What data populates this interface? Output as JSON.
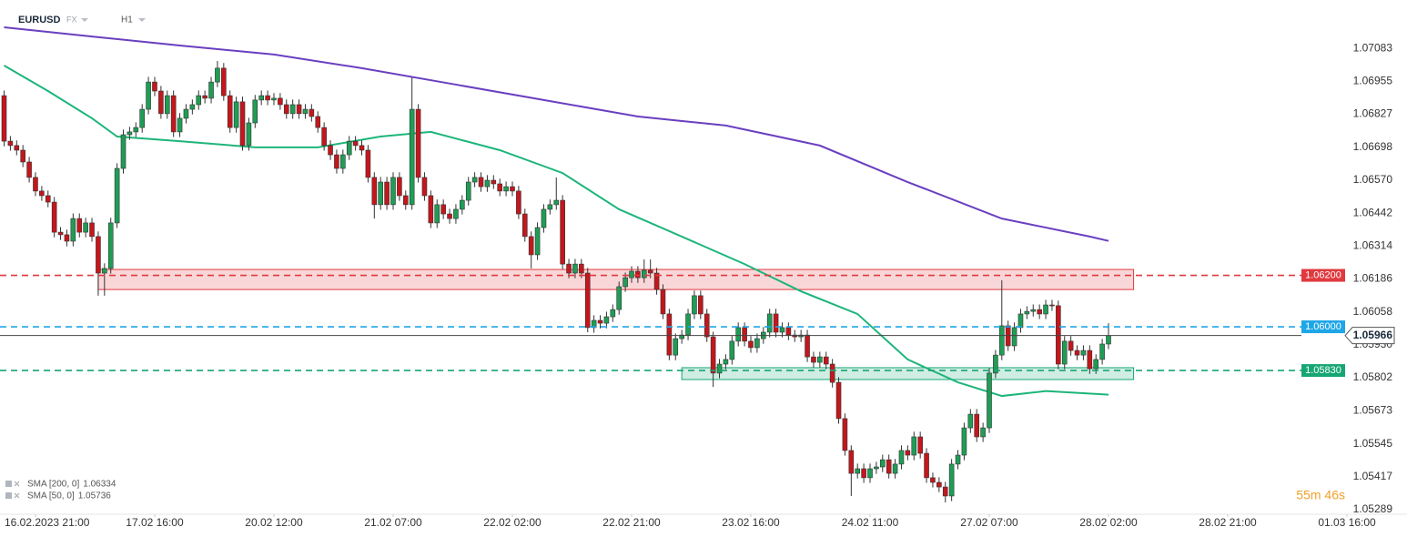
{
  "header": {
    "symbol": "EURUSD",
    "market": "FX",
    "timeframe": "H1"
  },
  "countdown": "55m 46s",
  "chart_data": {
    "type": "candlestick",
    "xlim": [
      -0.653,
      223.57
    ],
    "xticks": [
      {
        "value": 5,
        "label": "16.02.2023 21:00"
      },
      {
        "value": 24,
        "label": "17.02 16:00"
      },
      {
        "value": 43,
        "label": "20.02 12:00"
      },
      {
        "value": 62,
        "label": "21.02 07:00"
      },
      {
        "value": 81,
        "label": "22.02 02:00"
      },
      {
        "value": 100,
        "label": "22.02 21:00"
      },
      {
        "value": 119,
        "label": "23.02 16:00"
      },
      {
        "value": 138,
        "label": "24.02 11:00"
      },
      {
        "value": 157,
        "label": "27.02 07:00"
      },
      {
        "value": 176,
        "label": "28.02 02:00"
      },
      {
        "value": 195,
        "label": "28.02 21:00"
      },
      {
        "value": 214,
        "label": "01.03 16:00"
      }
    ],
    "ylim": [
      1.05271,
      1.07271
    ],
    "yticks": [
      1.07083,
      1.06955,
      1.06827,
      1.06698,
      {
        "value": 1.0657,
        "label": "1.06570"
      },
      1.06442,
      1.06314,
      1.06186,
      1.06058,
      {
        "value": 1.0593,
        "label": "1.05930"
      },
      1.05802,
      1.05673,
      1.05545,
      1.05417,
      1.05289
    ],
    "grid": false,
    "up_color": "#1f9d55",
    "down_color": "#c4161c",
    "open": [
      1.06899,
      1.06722,
      1.06705,
      1.06687,
      1.06641,
      1.06581,
      1.06528,
      1.0651,
      1.06485,
      1.06368,
      1.06358,
      1.06333,
      1.06421,
      1.06368,
      1.06404,
      1.06351,
      1.06209,
      1.06227,
      1.06404,
      1.06616,
      1.06747,
      1.06758,
      1.06775,
      1.06846,
      1.06952,
      1.06917,
      1.06829,
      1.06899,
      1.06758,
      1.06811,
      1.06846,
      1.06864,
      1.06899,
      1.06889,
      1.06952,
      1.07006,
      1.06899,
      1.06775,
      1.06875,
      1.06705,
      1.06793,
      1.06882,
      1.06899,
      1.06882,
      1.06889,
      1.06864,
      1.06829,
      1.06864,
      1.06829,
      1.06846,
      1.06818,
      1.06775,
      1.06705,
      1.06669,
      1.06616,
      1.06669,
      1.06722,
      1.06705,
      1.06687,
      1.06581,
      1.06475,
      1.06563,
      1.06475,
      1.06581,
      1.0651,
      1.06475,
      1.06846,
      1.06581,
      1.0651,
      1.06404,
      1.06475,
      1.06439,
      1.06421,
      1.06457,
      1.06492,
      1.06563,
      1.06581,
      1.06545,
      1.0657,
      1.06556,
      1.06528,
      1.06545,
      1.06528,
      1.06439,
      1.06351,
      1.0628,
      1.06386,
      1.06457,
      1.06475,
      1.06492,
      1.06244,
      1.06209,
      1.06244,
      1.06209,
      1.05997,
      1.06025,
      1.06014,
      1.06039,
      1.06067,
      1.06156,
      1.06191,
      1.06216,
      1.06191,
      1.0622,
      1.06209,
      1.06145,
      1.0605,
      1.0589,
      1.05954,
      1.05968,
      1.0605,
      1.06121,
      1.0605,
      1.05961,
      1.0582,
      1.05855,
      1.05873,
      1.05944,
      1.05997,
      1.05944,
      1.05919,
      1.05954,
      1.05979,
      1.0605,
      1.05979,
      1.05997,
      1.05968,
      1.05961,
      1.05968,
      1.05883,
      1.05862,
      1.05883,
      1.05855,
      1.05784,
      1.05643,
      1.05519,
      1.0543,
      1.05448,
      1.05413,
      1.05448,
      1.05455,
      1.05483,
      1.0543,
      1.05466,
      1.05519,
      1.05501,
      1.05572,
      1.05508,
      1.05413,
      1.05395,
      1.05377,
      1.05342,
      1.05466,
      1.05501,
      1.05607,
      1.0566,
      1.05572,
      1.05607,
      1.0582,
      1.0589,
      1.06004,
      1.05926,
      1.05997,
      1.0605,
      1.0606,
      1.06067,
      1.0605,
      1.06085,
      1.06082,
      1.05855,
      1.05944,
      1.05908,
      1.0589,
      1.05908,
      1.05837,
      1.05873,
      1.05933
    ],
    "high": [
      1.06919,
      1.06742,
      1.06725,
      1.06707,
      1.06661,
      1.06601,
      1.06548,
      1.0653,
      1.06505,
      1.06388,
      1.06378,
      1.06441,
      1.06441,
      1.06424,
      1.06424,
      1.06371,
      1.06247,
      1.06424,
      1.06636,
      1.06767,
      1.06778,
      1.06795,
      1.06866,
      1.06972,
      1.06972,
      1.06937,
      1.06919,
      1.06919,
      1.06831,
      1.06866,
      1.06884,
      1.06919,
      1.06919,
      1.06972,
      1.07034,
      1.07026,
      1.06919,
      1.06895,
      1.06895,
      1.06813,
      1.06902,
      1.06919,
      1.06919,
      1.06909,
      1.06909,
      1.06884,
      1.06884,
      1.06884,
      1.06866,
      1.06866,
      1.06838,
      1.06795,
      1.06725,
      1.06689,
      1.06689,
      1.06742,
      1.06742,
      1.06725,
      1.06707,
      1.06601,
      1.06583,
      1.06583,
      1.06601,
      1.06601,
      1.0653,
      1.0697,
      1.06866,
      1.06601,
      1.0653,
      1.06495,
      1.06495,
      1.06459,
      1.06477,
      1.06512,
      1.06583,
      1.06601,
      1.06601,
      1.0659,
      1.0659,
      1.06576,
      1.06565,
      1.06565,
      1.06548,
      1.06459,
      1.06371,
      1.06406,
      1.06477,
      1.06495,
      1.06581,
      1.06512,
      1.06264,
      1.06264,
      1.06264,
      1.06229,
      1.06045,
      1.06045,
      1.06059,
      1.06087,
      1.06176,
      1.06211,
      1.06236,
      1.06236,
      1.06262,
      1.06262,
      1.06229,
      1.06165,
      1.0607,
      1.05974,
      1.05988,
      1.0607,
      1.06141,
      1.06141,
      1.0607,
      1.05981,
      1.05875,
      1.05893,
      1.05964,
      1.06017,
      1.06017,
      1.05964,
      1.05974,
      1.05999,
      1.0607,
      1.0607,
      1.06017,
      1.06017,
      1.05988,
      1.05988,
      1.05988,
      1.05903,
      1.05903,
      1.05903,
      1.05875,
      1.05804,
      1.05663,
      1.05539,
      1.05468,
      1.05468,
      1.05468,
      1.05475,
      1.05503,
      1.05503,
      1.05486,
      1.05539,
      1.05539,
      1.05592,
      1.05592,
      1.05528,
      1.05433,
      1.05415,
      1.05397,
      1.05486,
      1.05521,
      1.05627,
      1.0568,
      1.0568,
      1.05627,
      1.0584,
      1.0591,
      1.06181,
      1.06024,
      1.06017,
      1.0607,
      1.0608,
      1.06087,
      1.06087,
      1.06105,
      1.06105,
      1.06102,
      1.05964,
      1.05964,
      1.05928,
      1.05928,
      1.05928,
      1.05893,
      1.05953,
      1.06014
    ],
    "low": [
      1.06702,
      1.06685,
      1.06667,
      1.06621,
      1.06561,
      1.06508,
      1.0649,
      1.06465,
      1.06348,
      1.06338,
      1.06313,
      1.06313,
      1.06348,
      1.06348,
      1.06331,
      1.06121,
      1.06121,
      1.06207,
      1.06384,
      1.06596,
      1.06727,
      1.06738,
      1.06755,
      1.06826,
      1.06897,
      1.06809,
      1.06809,
      1.06738,
      1.06738,
      1.06791,
      1.06826,
      1.06844,
      1.06869,
      1.06869,
      1.06932,
      1.06879,
      1.06755,
      1.06755,
      1.06685,
      1.06685,
      1.06773,
      1.06862,
      1.06862,
      1.06862,
      1.06844,
      1.06809,
      1.06809,
      1.06809,
      1.06809,
      1.06798,
      1.06755,
      1.06685,
      1.06649,
      1.06596,
      1.06596,
      1.06649,
      1.06685,
      1.06667,
      1.06561,
      1.06421,
      1.06455,
      1.06455,
      1.06455,
      1.0649,
      1.06455,
      1.06455,
      1.06561,
      1.0649,
      1.06384,
      1.06384,
      1.06419,
      1.06401,
      1.06401,
      1.06437,
      1.06472,
      1.06543,
      1.06525,
      1.06525,
      1.06536,
      1.06508,
      1.06508,
      1.06508,
      1.06419,
      1.06331,
      1.06227,
      1.0626,
      1.06366,
      1.06437,
      1.06455,
      1.06224,
      1.06189,
      1.06189,
      1.06189,
      1.05979,
      1.05977,
      1.05994,
      1.05994,
      1.06019,
      1.06047,
      1.06136,
      1.06171,
      1.06171,
      1.06171,
      1.06189,
      1.06125,
      1.0603,
      1.0587,
      1.0587,
      1.05934,
      1.05948,
      1.0603,
      1.0603,
      1.05941,
      1.05766,
      1.058,
      1.05835,
      1.05853,
      1.05924,
      1.05924,
      1.05899,
      1.05899,
      1.05934,
      1.05959,
      1.05959,
      1.05959,
      1.05948,
      1.05941,
      1.05941,
      1.05863,
      1.05842,
      1.05842,
      1.05835,
      1.05764,
      1.05623,
      1.05499,
      1.05342,
      1.0541,
      1.05393,
      1.05393,
      1.05428,
      1.05435,
      1.0541,
      1.0541,
      1.05446,
      1.05481,
      1.05481,
      1.05488,
      1.05393,
      1.05375,
      1.05357,
      1.05317,
      1.05322,
      1.05446,
      1.05481,
      1.05587,
      1.05552,
      1.05552,
      1.05587,
      1.058,
      1.0587,
      1.05906,
      1.05906,
      1.05977,
      1.0603,
      1.0604,
      1.0603,
      1.0603,
      1.06062,
      1.05835,
      1.05835,
      1.05888,
      1.0587,
      1.0587,
      1.05817,
      1.05817,
      1.05853,
      1.05913
    ],
    "close": [
      1.06722,
      1.06705,
      1.06687,
      1.06641,
      1.06581,
      1.06528,
      1.0651,
      1.06485,
      1.06368,
      1.06358,
      1.06333,
      1.06421,
      1.06368,
      1.06404,
      1.06351,
      1.06209,
      1.06227,
      1.06404,
      1.06616,
      1.06747,
      1.06758,
      1.06775,
      1.06846,
      1.06952,
      1.06917,
      1.06829,
      1.06899,
      1.06758,
      1.06811,
      1.06846,
      1.06864,
      1.06899,
      1.06889,
      1.06952,
      1.07006,
      1.06899,
      1.06775,
      1.06875,
      1.06705,
      1.06793,
      1.06882,
      1.06899,
      1.06882,
      1.06889,
      1.06864,
      1.06829,
      1.06864,
      1.06829,
      1.06846,
      1.06818,
      1.06775,
      1.06705,
      1.06669,
      1.06616,
      1.06669,
      1.06722,
      1.06705,
      1.06687,
      1.06581,
      1.06475,
      1.06563,
      1.06475,
      1.06581,
      1.0651,
      1.06475,
      1.06846,
      1.06581,
      1.0651,
      1.06404,
      1.06475,
      1.06439,
      1.06421,
      1.06457,
      1.06492,
      1.06563,
      1.06581,
      1.06545,
      1.0657,
      1.06556,
      1.06528,
      1.06545,
      1.06528,
      1.06439,
      1.06351,
      1.0628,
      1.06386,
      1.06457,
      1.06475,
      1.06492,
      1.06244,
      1.06209,
      1.06244,
      1.06209,
      1.05997,
      1.06025,
      1.06014,
      1.06039,
      1.06067,
      1.06156,
      1.06191,
      1.06216,
      1.06191,
      1.0622,
      1.06209,
      1.06145,
      1.0605,
      1.0589,
      1.05954,
      1.05968,
      1.0605,
      1.06121,
      1.0605,
      1.05961,
      1.0582,
      1.05855,
      1.05873,
      1.05944,
      1.05997,
      1.05944,
      1.05919,
      1.05954,
      1.05979,
      1.0605,
      1.05979,
      1.05997,
      1.05968,
      1.05961,
      1.05968,
      1.05883,
      1.05862,
      1.05883,
      1.05855,
      1.05784,
      1.05643,
      1.05519,
      1.0543,
      1.05448,
      1.05413,
      1.05448,
      1.05455,
      1.05483,
      1.0543,
      1.05466,
      1.05519,
      1.05501,
      1.05572,
      1.05508,
      1.05413,
      1.05395,
      1.05377,
      1.05342,
      1.05466,
      1.05501,
      1.05607,
      1.0566,
      1.05572,
      1.05607,
      1.0582,
      1.0589,
      1.06004,
      1.05926,
      1.05997,
      1.0605,
      1.0606,
      1.06067,
      1.0605,
      1.06085,
      1.06082,
      1.05855,
      1.05944,
      1.05908,
      1.0589,
      1.05908,
      1.05837,
      1.05873,
      1.05933,
      1.05966
    ],
    "series": [
      {
        "name": "SMA [200, 0]",
        "color": "#6a3fc0",
        "value": 1.06334,
        "x": [
          0,
          14,
          28,
          43,
          57,
          72,
          86,
          101,
          115,
          130,
          144,
          159,
          173,
          176
        ],
        "values": [
          1.07165,
          1.07129,
          1.07094,
          1.07059,
          1.07006,
          1.06942,
          1.06882,
          1.06818,
          1.06783,
          1.06705,
          1.06563,
          1.06421,
          1.06351,
          1.06334
        ]
      },
      {
        "name": "SMA [50, 0]",
        "color": "#1db57a",
        "value": 1.05736,
        "x": [
          0,
          7,
          14,
          18,
          28,
          40,
          50,
          60,
          68,
          79,
          89,
          98,
          108,
          118,
          127,
          136,
          144,
          152,
          159,
          166,
          176
        ],
        "values": [
          1.07016,
          1.06917,
          1.06811,
          1.0674,
          1.06722,
          1.06698,
          1.06698,
          1.0674,
          1.06758,
          1.06687,
          1.06598,
          1.06457,
          1.06351,
          1.06244,
          1.06138,
          1.0605,
          1.05873,
          1.05784,
          1.05731,
          1.0575,
          1.05736
        ]
      }
    ],
    "zones": [
      {
        "low": 1.06145,
        "high": 1.06223,
        "x": [
          15,
          180
        ],
        "color": "#e0393e"
      },
      {
        "low": 1.05795,
        "high": 1.05841,
        "x": [
          108,
          180
        ],
        "color": "#16a673"
      }
    ],
    "levels": [
      {
        "value": 1.062,
        "label": "1.06200",
        "color": "#e0393e"
      },
      {
        "value": 1.06,
        "label": "1.06000",
        "color": "#1ea6e6"
      },
      {
        "value": 1.0583,
        "label": "1.05830",
        "color": "#16a673"
      }
    ],
    "last_price": 1.05966
  }
}
